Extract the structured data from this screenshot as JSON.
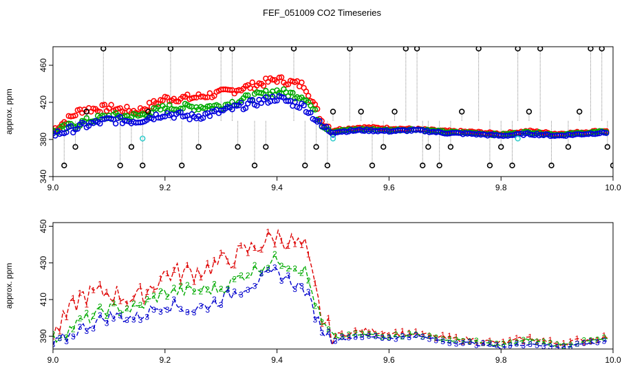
{
  "figure_title": "FEF_051009  CO2 Timeseries",
  "chart_data": [
    {
      "type": "scatter",
      "panel": "top",
      "title": "",
      "xlabel": "",
      "ylabel": "approx. ppm",
      "xlim": [
        9.0,
        10.0
      ],
      "ylim": [
        340,
        480
      ],
      "x_ticks": [
        9.0,
        9.2,
        9.4,
        9.6,
        9.8,
        10.0
      ],
      "x_tick_labels": [
        "9.0",
        "9.2",
        "9.4",
        "9.6",
        "9.8",
        "10.0"
      ],
      "y_ticks": [
        340,
        380,
        420,
        460
      ],
      "y_tick_labels": [
        "340",
        "380",
        "420",
        "460"
      ],
      "marker": "circle",
      "series": [
        {
          "name": "red",
          "color": "#ff0000",
          "x": [
            9.0,
            9.05,
            9.1,
            9.15,
            9.2,
            9.25,
            9.3,
            9.35,
            9.4,
            9.45,
            9.48,
            9.5,
            9.55,
            9.6,
            9.65,
            9.7,
            9.75,
            9.8,
            9.85,
            9.9,
            9.95,
            10.0
          ],
          "y": [
            390,
            412,
            414,
            410,
            424,
            425,
            430,
            437,
            445,
            438,
            400,
            390,
            393,
            392,
            391,
            389,
            388,
            386,
            389,
            386,
            388,
            390
          ]
        },
        {
          "name": "green",
          "color": "#00aa00",
          "x": [
            9.0,
            9.05,
            9.1,
            9.15,
            9.2,
            9.25,
            9.3,
            9.35,
            9.4,
            9.45,
            9.48,
            9.5,
            9.55,
            9.6,
            9.65,
            9.7,
            9.75,
            9.8,
            9.85,
            9.9,
            9.95,
            10.0
          ],
          "y": [
            388,
            398,
            405,
            405,
            414,
            415,
            416,
            425,
            432,
            426,
            397,
            389,
            391,
            390,
            391,
            388,
            387,
            385,
            388,
            385,
            387,
            389
          ]
        },
        {
          "name": "blue",
          "color": "#0000dd",
          "x": [
            9.0,
            9.05,
            9.1,
            9.15,
            9.2,
            9.25,
            9.3,
            9.35,
            9.4,
            9.45,
            9.48,
            9.5,
            9.55,
            9.6,
            9.65,
            9.7,
            9.75,
            9.8,
            9.85,
            9.9,
            9.95,
            10.0
          ],
          "y": [
            385,
            394,
            401,
            400,
            408,
            404,
            410,
            418,
            425,
            415,
            394,
            388,
            390,
            389,
            390,
            387,
            386,
            384,
            386,
            384,
            386,
            388
          ]
        },
        {
          "name": "black",
          "color": "#000000",
          "x": [
            9.02,
            9.04,
            9.06,
            9.09,
            9.12,
            9.14,
            9.16,
            9.17,
            9.21,
            9.23,
            9.26,
            9.3,
            9.32,
            9.33,
            9.36,
            9.38,
            9.43,
            9.45,
            9.47,
            9.49,
            9.5,
            9.53,
            9.55,
            9.57,
            9.59,
            9.61,
            9.63,
            9.65,
            9.66,
            9.67,
            9.69,
            9.71,
            9.73,
            9.76,
            9.78,
            9.8,
            9.82,
            9.83,
            9.85,
            9.87,
            9.89,
            9.92,
            9.94,
            9.96,
            9.98,
            9.99,
            10.0
          ],
          "y": [
            352,
            372,
            410,
            478,
            352,
            372,
            352,
            410,
            478,
            352,
            372,
            478,
            478,
            372,
            352,
            372,
            478,
            352,
            372,
            352,
            410,
            478,
            410,
            352,
            372,
            410,
            478,
            478,
            352,
            372,
            352,
            372,
            410,
            478,
            352,
            372,
            352,
            478,
            410,
            478,
            352,
            372,
            410,
            478,
            478,
            372,
            352
          ]
        },
        {
          "name": "cyan",
          "color": "#33cccc",
          "x": [
            9.16,
            9.5,
            9.83
          ],
          "y": [
            381,
            381,
            381
          ]
        }
      ]
    },
    {
      "type": "line",
      "panel": "bottom",
      "title": "",
      "xlabel": "",
      "ylabel": "approx. ppm",
      "xlim": [
        9.0,
        10.0
      ],
      "ylim": [
        383,
        452
      ],
      "x_ticks": [
        9.0,
        9.2,
        9.4,
        9.6,
        9.8,
        10.0
      ],
      "x_tick_labels": [
        "9.0",
        "9.2",
        "9.4",
        "9.6",
        "9.8",
        "10.0"
      ],
      "y_ticks": [
        390,
        410,
        430,
        450
      ],
      "y_tick_labels": [
        "390",
        "410",
        "430",
        "450"
      ],
      "series": [
        {
          "name": "1",
          "label": "1",
          "color": "#dd0000",
          "x": [
            9.0,
            9.05,
            9.1,
            9.15,
            9.2,
            9.25,
            9.3,
            9.35,
            9.4,
            9.45,
            9.48,
            9.5,
            9.55,
            9.6,
            9.65,
            9.7,
            9.75,
            9.8,
            9.85,
            9.9,
            9.95,
            10.0
          ],
          "y": [
            390,
            412,
            414,
            410,
            424,
            425,
            430,
            437,
            445,
            438,
            400,
            390,
            393,
            392,
            391,
            389,
            388,
            386,
            389,
            386,
            388,
            390
          ]
        },
        {
          "name": "2",
          "label": "2",
          "color": "#00aa00",
          "x": [
            9.0,
            9.05,
            9.1,
            9.15,
            9.2,
            9.25,
            9.3,
            9.35,
            9.4,
            9.45,
            9.48,
            9.5,
            9.55,
            9.6,
            9.65,
            9.7,
            9.75,
            9.8,
            9.85,
            9.9,
            9.95,
            10.0
          ],
          "y": [
            388,
            398,
            405,
            405,
            414,
            415,
            416,
            425,
            432,
            426,
            397,
            389,
            391,
            390,
            391,
            388,
            387,
            385,
            388,
            385,
            387,
            389
          ]
        },
        {
          "name": "3",
          "label": "3",
          "color": "#0000cc",
          "x": [
            9.0,
            9.05,
            9.1,
            9.15,
            9.2,
            9.25,
            9.3,
            9.35,
            9.4,
            9.45,
            9.48,
            9.5,
            9.55,
            9.6,
            9.65,
            9.7,
            9.75,
            9.8,
            9.85,
            9.9,
            9.95,
            10.0
          ],
          "y": [
            385,
            394,
            401,
            400,
            408,
            404,
            410,
            418,
            425,
            415,
            394,
            388,
            390,
            389,
            390,
            387,
            386,
            384,
            386,
            384,
            386,
            388
          ]
        }
      ]
    }
  ]
}
